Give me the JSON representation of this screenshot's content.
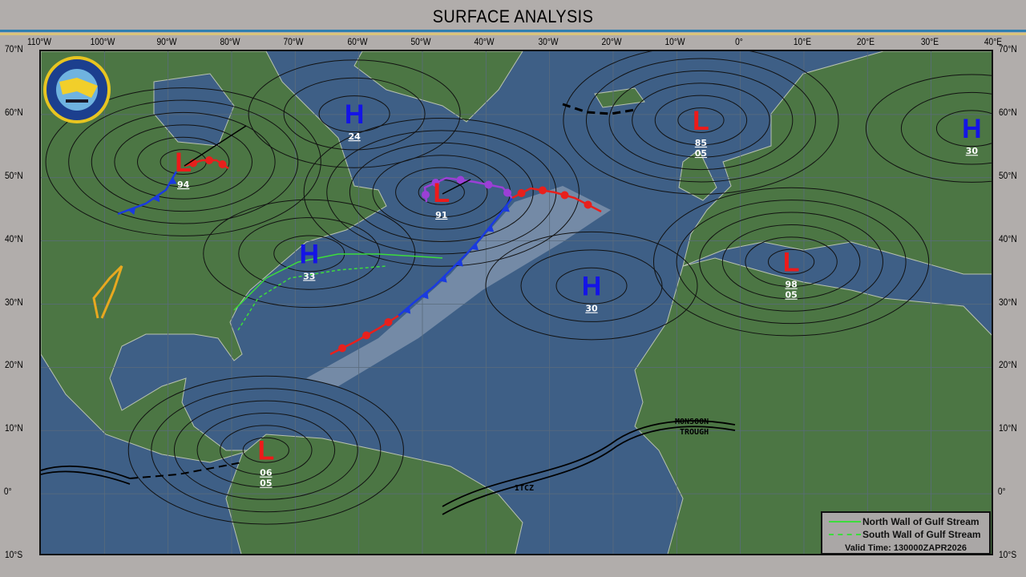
{
  "title": "SURFACE ANALYSIS",
  "map": {
    "longitude_labels": [
      "110°W",
      "100°W",
      "90°W",
      "80°W",
      "70°W",
      "60°W",
      "50°W",
      "40°W",
      "30°W",
      "20°W",
      "10°W",
      "0°",
      "10°E",
      "20°E",
      "30°E",
      "40°E"
    ],
    "latitude_labels": [
      "70°N",
      "60°N",
      "50°N",
      "40°N",
      "30°N",
      "20°N",
      "10°N",
      "0°",
      "10°S"
    ],
    "colors": {
      "ocean": "#3e5f86",
      "land": "#4c7644",
      "high": "#1414e6",
      "low": "#ee1a1a",
      "cold_front": "#1a3ae0",
      "warm_front": "#e8201c",
      "occluded_front": "#9b3fd6",
      "gulf_stream": "#3cdc3c",
      "trough": "#e8a820"
    },
    "pressure_systems": [
      {
        "type": "L",
        "value": "94",
        "lat": 52.5,
        "lon": -87.6
      },
      {
        "type": "H",
        "value": "24",
        "lat": 60.1,
        "lon": -60.7
      },
      {
        "type": "H",
        "value": "33",
        "lat": 38.0,
        "lon": -67.8
      },
      {
        "type": "L",
        "value": "91",
        "lat": 47.7,
        "lon": -47.0
      },
      {
        "type": "H",
        "value": "30",
        "lat": 32.9,
        "lon": -23.4
      },
      {
        "type": "L",
        "value": "85",
        "value2": "05",
        "lat": 59.1,
        "lon": -6.2
      },
      {
        "type": "H",
        "value": "30",
        "lat": 57.8,
        "lon": 36.4
      },
      {
        "type": "L",
        "value": "98",
        "value2": "05",
        "lat": 36.7,
        "lon": 8.0
      },
      {
        "type": "L",
        "value": "06",
        "value2": "05",
        "lat": 6.9,
        "lon": -74.6
      }
    ],
    "annotations": {
      "monsoon_line1": "MONSOON",
      "monsoon_line2": "TROUGH",
      "itcz": "ITCZ"
    },
    "logo_text": "FLEET WEATHER CENTER NORFOLK"
  },
  "legend": {
    "north_wall": "North Wall of Gulf Stream",
    "south_wall": "South Wall of Gulf Stream",
    "valid_label": "Valid Time:",
    "valid_time": "130000ZAPR2026"
  }
}
